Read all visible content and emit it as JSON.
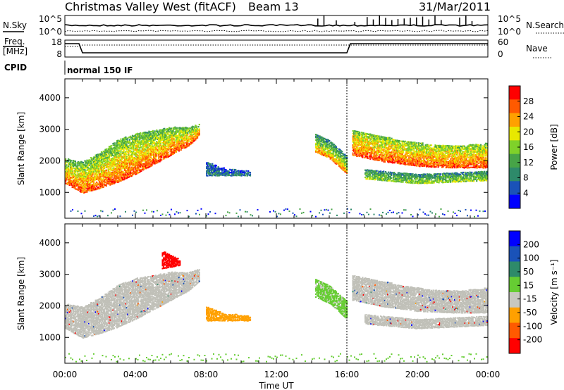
{
  "header": {
    "station": "Christmas Valley West (fitACF)",
    "beam": "Beam 13",
    "date": "31/Mar/2011"
  },
  "top_panels": {
    "nsky_label": "N.Sky",
    "nsearch_label": "N.Search",
    "noise_ticks": [
      "10^5",
      "10^0"
    ],
    "freq_label_line1": "Freq.",
    "freq_label_line2": "[MHz]",
    "freq_ticks": [
      "18",
      "8"
    ],
    "nave_label": "Nave",
    "nave_ticks": [
      "60",
      "0"
    ],
    "cpid_label": "CPID",
    "cpid_value": "normal 150 IF"
  },
  "colors": {
    "power_scale": [
      "#0000ff",
      "#1a52b8",
      "#2e8a6a",
      "#47a447",
      "#7fd12a",
      "#e8e800",
      "#ffa000",
      "#ff5a00",
      "#ff0000"
    ],
    "velocity_scale": [
      "#0000ff",
      "#1a52b8",
      "#2e8a6a",
      "#66cc33",
      "#c8c8c0",
      "#ffa000",
      "#ff5a00",
      "#ff0000"
    ],
    "ground_scatter": "#c0c0b8"
  },
  "chart_data": [
    {
      "type": "heatmap",
      "name": "power",
      "xlabel": "",
      "ylabel": "Slant Range [km]",
      "xlim": [
        0,
        24
      ],
      "ylim": [
        180,
        4600
      ],
      "yticks": [
        1000,
        2000,
        3000,
        4000
      ],
      "colorbar": {
        "label": "Power [dB]",
        "tick_labels": [
          "28",
          "24",
          "20",
          "16",
          "12",
          "8",
          "4"
        ],
        "range": [
          0,
          30
        ]
      },
      "bands": [
        {
          "t": [
            0,
            1,
            2,
            3,
            4,
            5,
            6,
            7,
            7.6
          ],
          "r_low": [
            1300,
            1000,
            1150,
            1350,
            1600,
            1900,
            2200,
            2500,
            2800
          ],
          "r_high": [
            2100,
            2000,
            2300,
            2700,
            2900,
            3000,
            3100,
            3100,
            3200
          ],
          "power_low": 26,
          "power_high": 12
        },
        {
          "t": [
            14.2,
            15,
            16
          ],
          "r_low": [
            2300,
            2100,
            1600
          ],
          "r_high": [
            2900,
            2700,
            2200
          ],
          "power_low": 24,
          "power_high": 6
        },
        {
          "t": [
            16.3,
            18,
            20,
            22,
            24
          ],
          "r_low": [
            2200,
            2000,
            1850,
            1800,
            1800
          ],
          "r_high": [
            3000,
            2800,
            2600,
            2500,
            2600
          ],
          "power_low": 26,
          "power_high": 14
        },
        {
          "t": [
            17,
            20,
            24
          ],
          "r_low": [
            1450,
            1300,
            1400
          ],
          "r_high": [
            1750,
            1600,
            1700
          ],
          "power_low": 16,
          "power_high": 8
        },
        {
          "t": [
            8,
            9,
            10.5
          ],
          "r_low": [
            1550,
            1550,
            1550
          ],
          "r_high": [
            2000,
            1800,
            1700
          ],
          "power_low": 8,
          "power_high": 4
        }
      ]
    },
    {
      "type": "heatmap",
      "name": "velocity",
      "xlabel": "Time UT",
      "ylabel": "Slant Range [km]",
      "xlim": [
        0,
        24
      ],
      "ylim": [
        180,
        4600
      ],
      "yticks": [
        1000,
        2000,
        3000,
        4000
      ],
      "xtick_labels": [
        "00:00",
        "04:00",
        "08:00",
        "12:00",
        "16:00",
        "20:00",
        "00:00"
      ],
      "xticks": [
        0,
        4,
        8,
        12,
        16,
        20,
        24
      ],
      "colorbar": {
        "label": "Velocity [m s⁻¹]",
        "tick_labels": [
          "200",
          "100",
          "50",
          "15",
          "-15",
          "-50",
          "-100",
          "-200"
        ]
      },
      "bands": [
        {
          "t": [
            0,
            1,
            2,
            3,
            4,
            5,
            6,
            7,
            7.6
          ],
          "r_low": [
            1300,
            1000,
            1150,
            1350,
            1600,
            1900,
            2200,
            2500,
            2800
          ],
          "r_high": [
            2100,
            2000,
            2300,
            2700,
            2900,
            3000,
            3100,
            3100,
            3200
          ],
          "vel": 0
        },
        {
          "t": [
            14.2,
            15,
            16
          ],
          "r_low": [
            2300,
            2100,
            1600
          ],
          "r_high": [
            2900,
            2700,
            2200
          ],
          "vel": 20
        },
        {
          "t": [
            16.3,
            18,
            20,
            22,
            24
          ],
          "r_low": [
            2200,
            2000,
            1850,
            1800,
            1800
          ],
          "r_high": [
            3000,
            2800,
            2600,
            2500,
            2600
          ],
          "vel": 0
        },
        {
          "t": [
            17,
            20,
            24
          ],
          "r_low": [
            1450,
            1300,
            1400
          ],
          "r_high": [
            1750,
            1600,
            1700
          ],
          "vel": 0
        },
        {
          "t": [
            8,
            9,
            10.5
          ],
          "r_low": [
            1550,
            1550,
            1550
          ],
          "r_high": [
            2000,
            1800,
            1700
          ],
          "vel": -40
        },
        {
          "t": [
            5.5,
            6.5
          ],
          "r_low": [
            3200,
            3300
          ],
          "r_high": [
            3800,
            3500
          ],
          "vel": -200
        }
      ]
    }
  ]
}
